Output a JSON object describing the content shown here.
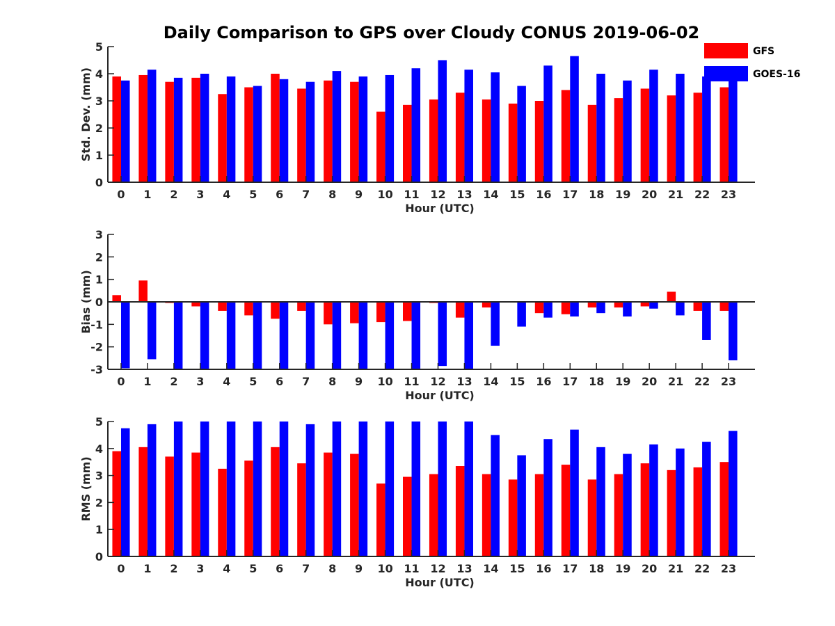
{
  "chart_data": {
    "title": "Daily Comparison to GPS over Cloudy CONUS 2019-06-02",
    "legend": {
      "placement": "top-right",
      "entries": [
        {
          "name": "GFS",
          "color": "#ff0000"
        },
        {
          "name": "GOES-16",
          "color": "#0000ff"
        }
      ]
    },
    "panels": [
      {
        "type": "bar",
        "xlabel": "Hour (UTC)",
        "ylabel": "Std. Dev. (mm)",
        "ylim": [
          0,
          5
        ],
        "yticks": [
          0,
          1,
          2,
          3,
          4,
          5
        ],
        "categories": [
          "0",
          "1",
          "2",
          "3",
          "4",
          "5",
          "6",
          "7",
          "8",
          "9",
          "10",
          "11",
          "12",
          "13",
          "14",
          "15",
          "16",
          "17",
          "18",
          "19",
          "20",
          "21",
          "22",
          "23"
        ],
        "series": [
          {
            "name": "GFS",
            "values": [
              3.9,
              3.95,
              3.7,
              3.85,
              3.25,
              3.5,
              4.0,
              3.45,
              3.75,
              3.7,
              2.6,
              2.85,
              3.05,
              3.3,
              3.05,
              2.9,
              3.0,
              3.4,
              2.85,
              3.1,
              3.45,
              3.2,
              3.3,
              3.5
            ]
          },
          {
            "name": "GOES-16",
            "values": [
              3.75,
              4.15,
              3.85,
              4.0,
              3.9,
              3.55,
              3.8,
              3.7,
              4.1,
              3.9,
              3.95,
              4.2,
              4.5,
              4.15,
              4.05,
              3.55,
              4.3,
              4.65,
              4.0,
              3.75,
              4.15,
              4.0,
              3.9,
              4.0
            ]
          }
        ]
      },
      {
        "type": "bar",
        "xlabel": "Hour (UTC)",
        "ylabel": "Bias (mm)",
        "ylim": [
          -3,
          3
        ],
        "yticks": [
          -3,
          -2,
          -1,
          0,
          1,
          2,
          3
        ],
        "categories": [
          "0",
          "1",
          "2",
          "3",
          "4",
          "5",
          "6",
          "7",
          "8",
          "9",
          "10",
          "11",
          "12",
          "13",
          "14",
          "15",
          "16",
          "17",
          "18",
          "19",
          "20",
          "21",
          "22",
          "23"
        ],
        "series": [
          {
            "name": "GFS",
            "values": [
              0.3,
              0.95,
              -0.05,
              -0.2,
              -0.4,
              -0.6,
              -0.75,
              -0.4,
              -1.0,
              -0.95,
              -0.9,
              -0.85,
              -0.05,
              -0.7,
              -0.25,
              0.03,
              -0.5,
              -0.55,
              -0.25,
              -0.25,
              -0.2,
              0.45,
              -0.4,
              -0.4
            ]
          },
          {
            "name": "GOES-16",
            "values": [
              -2.95,
              -2.55,
              -3.0,
              -3.0,
              -3.0,
              -3.0,
              -3.0,
              -3.0,
              -3.0,
              -3.0,
              -3.0,
              -3.0,
              -2.85,
              -3.0,
              -1.95,
              -1.1,
              -0.7,
              -0.65,
              -0.5,
              -0.65,
              -0.3,
              -0.6,
              -1.7,
              -2.6
            ]
          }
        ]
      },
      {
        "type": "bar",
        "xlabel": "Hour (UTC)",
        "ylabel": "RMS (mm)",
        "ylim": [
          0,
          5
        ],
        "yticks": [
          0,
          1,
          2,
          3,
          4,
          5
        ],
        "categories": [
          "0",
          "1",
          "2",
          "3",
          "4",
          "5",
          "6",
          "7",
          "8",
          "9",
          "10",
          "11",
          "12",
          "13",
          "14",
          "15",
          "16",
          "17",
          "18",
          "19",
          "20",
          "21",
          "22",
          "23"
        ],
        "series": [
          {
            "name": "GFS",
            "values": [
              3.9,
              4.05,
              3.7,
              3.85,
              3.25,
              3.55,
              4.05,
              3.45,
              3.85,
              3.8,
              2.7,
              2.95,
              3.05,
              3.35,
              3.05,
              2.85,
              3.05,
              3.4,
              2.85,
              3.05,
              3.45,
              3.2,
              3.3,
              3.5
            ]
          },
          {
            "name": "GOES-16",
            "values": [
              4.75,
              4.9,
              5.0,
              5.0,
              5.0,
              5.0,
              5.0,
              4.9,
              5.0,
              5.0,
              5.0,
              5.0,
              5.0,
              5.0,
              4.5,
              3.75,
              4.35,
              4.7,
              4.05,
              3.8,
              4.15,
              4.0,
              4.25,
              4.65
            ]
          }
        ]
      }
    ]
  }
}
